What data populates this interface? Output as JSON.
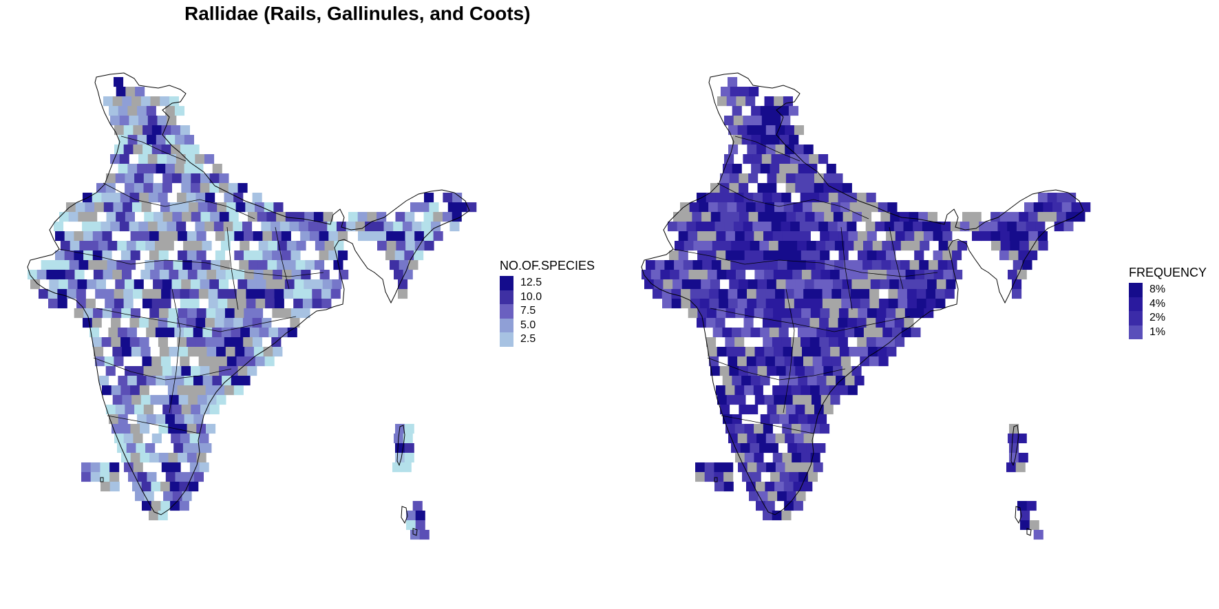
{
  "title": "Rallidae (Rails, Gallinules, and Coots)",
  "colors": {
    "nodata": "#a6a6a6",
    "outline": "#000000",
    "left_scale": [
      "#b4e0ea",
      "#a7c2e2",
      "#8f9fd6",
      "#7677c9",
      "#5b4fb6",
      "#3e30a3",
      "#140c8c"
    ],
    "right_scale": [
      "#6a5fc2",
      "#4e41b1",
      "#3b2ba8",
      "#2a1a9e",
      "#160c8c"
    ]
  },
  "left_legend": {
    "title": "NO.OF.SPECIES",
    "items": [
      {
        "label": "12.5",
        "color": "#140c8c"
      },
      {
        "label": "10.0",
        "color": "#3e30a3"
      },
      {
        "label": "7.5",
        "color": "#6a60c0"
      },
      {
        "label": "5.0",
        "color": "#8f9fd6"
      },
      {
        "label": "2.5",
        "color": "#a7c2e2"
      }
    ]
  },
  "right_legend": {
    "title": "FREQUENCY",
    "items": [
      {
        "label": "8%",
        "color": "#160c8c"
      },
      {
        "label": "4%",
        "color": "#2a1a9e"
      },
      {
        "label": "2%",
        "color": "#3b2ba8"
      },
      {
        "label": "1%",
        "color": "#5a4fba"
      }
    ]
  }
}
